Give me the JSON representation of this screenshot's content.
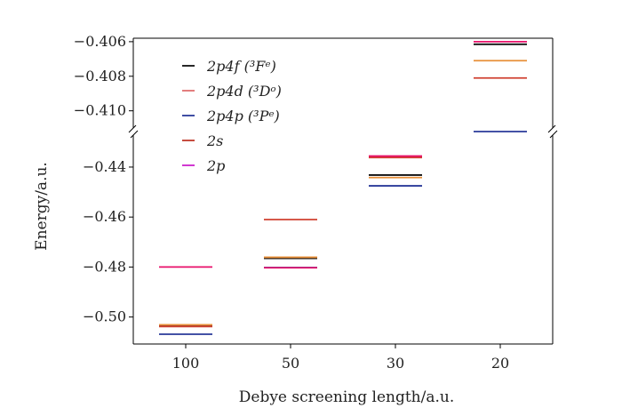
{
  "chart_data": {
    "type": "scatter",
    "xlabel": "Debye screening length/a.u.",
    "ylabel": "Energy/a.u.",
    "categories": [
      "100",
      "50",
      "30",
      "20"
    ],
    "axis_break": true,
    "upper_panel": {
      "ylim": [
        -0.4112,
        -0.4058
      ],
      "yticks": [
        -0.406,
        -0.408,
        -0.41
      ],
      "ytick_labels": [
        "−0.406",
        "−0.408",
        "−0.410"
      ]
    },
    "lower_panel": {
      "ylim": [
        -0.5108,
        -0.4265
      ],
      "yticks": [
        -0.44,
        -0.46,
        -0.48,
        -0.5
      ],
      "ytick_labels": [
        "−0.44",
        "−0.46",
        "−0.48",
        "−0.50"
      ]
    },
    "legend": {
      "placement": "upper-left",
      "entries": [
        {
          "label": "2p4f (³Fᵉ)",
          "color": "#111111"
        },
        {
          "label": "2p4d (³Dᵒ)",
          "color": "#e07070"
        },
        {
          "label": "2p4p (³Pᵉ)",
          "color": "#2a3a9a"
        },
        {
          "label": "2s",
          "color": "#c0392b"
        },
        {
          "label": "2p",
          "color": "#cc22cc"
        }
      ]
    },
    "series": [
      {
        "name": "2p4f (³Fᵉ)",
        "color": "#111111",
        "values": [
          -0.5035,
          -0.4765,
          -0.4432,
          -0.40615
        ]
      },
      {
        "name": "2p4d (³Dᵒ)",
        "color": "#e8903a",
        "values": [
          -0.5031,
          -0.4761,
          -0.4442,
          -0.4071
        ]
      },
      {
        "name": "2p4p (³Pᵉ)",
        "color": "#2a3a9a",
        "values": [
          -0.5069,
          -0.4802,
          -0.4475,
          -0.4112
        ]
      },
      {
        "name": "2s",
        "color": "#d04030",
        "values": [
          -0.5038,
          -0.461,
          -0.4362,
          -0.4081
        ]
      },
      {
        "name": "2p",
        "color": "#e8106a",
        "values": [
          -0.48,
          -0.4803,
          -0.4356,
          -0.406
        ]
      }
    ]
  }
}
